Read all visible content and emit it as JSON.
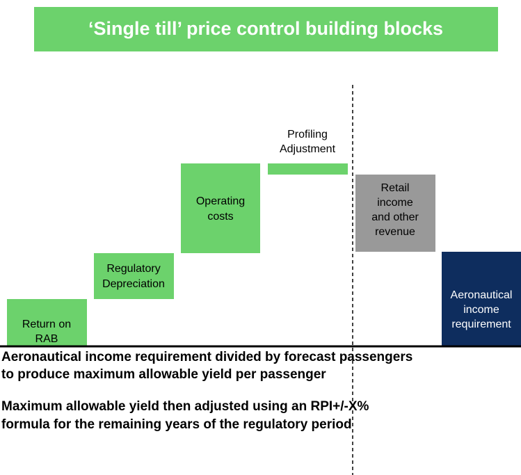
{
  "header": {
    "title": "‘Single till’ price control building blocks"
  },
  "blocks": [
    {
      "lines": [
        "Return on",
        "RAB"
      ]
    },
    {
      "lines": [
        "Regulatory",
        "Depreciation"
      ]
    },
    {
      "lines": [
        "Operating",
        "costs"
      ]
    },
    {
      "lines": [
        "Profiling",
        "Adjustment"
      ]
    },
    {
      "lines": [
        "Retail",
        "income",
        "and other",
        "revenue"
      ]
    },
    {
      "lines": [
        "Aeronautical",
        "income",
        "requirement"
      ]
    }
  ],
  "notes": [
    {
      "lines": [
        "Aeronautical income requirement divided by forecast passengers",
        "to produce maximum allowable yield per passenger"
      ]
    },
    {
      "lines": [
        "Maximum allowable yield then adjusted using an RPI+/-X%",
        "formula for the remaining years of the regulatory period"
      ]
    }
  ]
}
